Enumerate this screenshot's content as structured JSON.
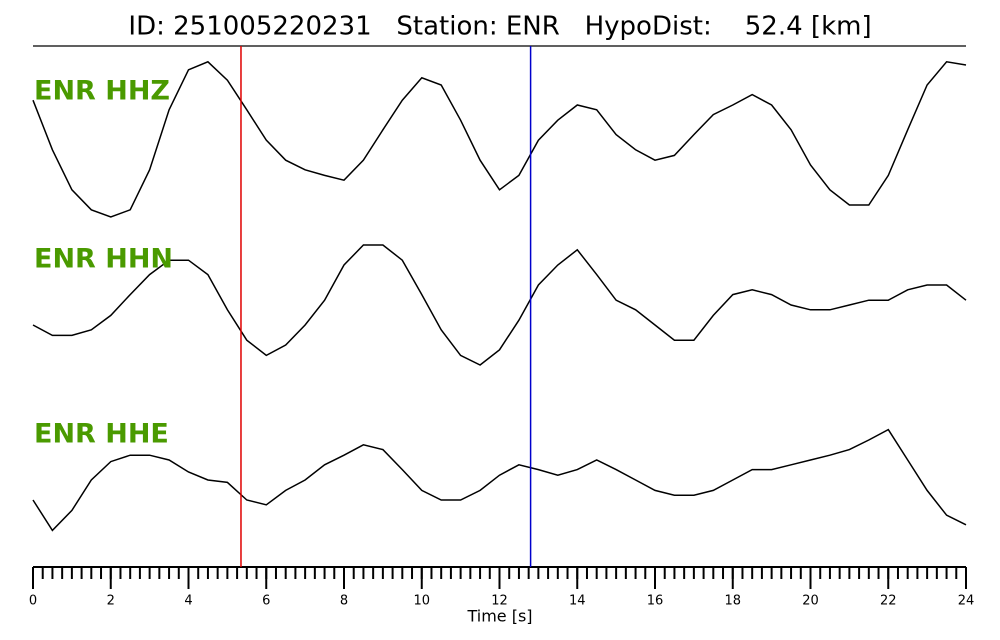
{
  "chart_data": {
    "type": "seismogram",
    "title": "ID: 251005220231   Station: ENR   HypoDist:    52.4 [km]",
    "xlabel": "Time [s]",
    "xlim": [
      0,
      24
    ],
    "xticks": [
      0,
      2,
      4,
      6,
      8,
      10,
      12,
      14,
      16,
      18,
      20,
      22,
      24
    ],
    "xminorticks": [
      0,
      0.25,
      0.5,
      0.75,
      1,
      1.25,
      1.5,
      1.75,
      2,
      2.25,
      2.5,
      2.75,
      3,
      3.25,
      3.5,
      3.75,
      4,
      4.25,
      4.5,
      4.75,
      5,
      5.25,
      5.5,
      5.75,
      6,
      6.25,
      6.5,
      6.75,
      7,
      7.25,
      7.5,
      7.75,
      8,
      8.25,
      8.5,
      8.75,
      9,
      9.25,
      9.5,
      9.75,
      10,
      10.25,
      10.5,
      10.75,
      11,
      11.25,
      11.5,
      11.75,
      12,
      12.25,
      12.5,
      12.75,
      13,
      13.25,
      13.5,
      13.75,
      14,
      14.25,
      14.5,
      14.75,
      15,
      15.25,
      15.5,
      15.75,
      16,
      16.25,
      16.5,
      16.75,
      17,
      17.25,
      17.5,
      17.75,
      18,
      18.25,
      18.5,
      18.75,
      19,
      19.25,
      19.5,
      19.75,
      20,
      20.25,
      20.5,
      20.75,
      21,
      21.25,
      21.5,
      21.75,
      22,
      22.25,
      22.5,
      22.75,
      23,
      23.25,
      23.5,
      23.75,
      24
    ],
    "ylim": [
      -1,
      1
    ],
    "x": [
      0,
      0.5,
      1,
      1.5,
      2,
      2.5,
      3,
      3.5,
      4,
      4.5,
      5,
      5.5,
      6,
      6.5,
      7,
      7.5,
      8,
      8.5,
      9,
      9.5,
      10,
      10.5,
      11,
      11.5,
      12,
      12.5,
      13,
      13.5,
      14,
      14.5,
      15,
      15.5,
      16,
      16.5,
      17,
      17.5,
      18,
      18.5,
      19,
      19.5,
      20,
      20.5,
      21,
      21.5,
      22,
      22.5,
      23,
      23.5,
      24
    ],
    "series": [
      {
        "name": "ENR HHZ",
        "color": "#000000",
        "label_color": "#4a9a00",
        "values": [
          0.46,
          -0.16,
          -0.66,
          -0.91,
          -1.0,
          -0.91,
          -0.41,
          0.34,
          0.84,
          0.94,
          0.71,
          0.34,
          -0.04,
          -0.29,
          -0.41,
          -0.48,
          -0.54,
          -0.29,
          0.09,
          0.46,
          0.74,
          0.65,
          0.21,
          -0.29,
          -0.66,
          -0.48,
          -0.04,
          0.21,
          0.4,
          0.34,
          0.03,
          -0.16,
          -0.29,
          -0.23,
          0.03,
          0.28,
          0.4,
          0.53,
          0.4,
          0.09,
          -0.35,
          -0.66,
          -0.85,
          -0.85,
          -0.48,
          0.09,
          0.65,
          0.94,
          0.9
        ]
      },
      {
        "name": "ENR HHN",
        "color": "#000000",
        "label_color": "#4a9a00",
        "values": [
          -0.25,
          -0.38,
          -0.38,
          -0.31,
          -0.13,
          0.13,
          0.38,
          0.56,
          0.56,
          0.38,
          -0.06,
          -0.44,
          -0.63,
          -0.5,
          -0.25,
          0.06,
          0.5,
          0.75,
          0.75,
          0.56,
          0.13,
          -0.31,
          -0.63,
          -0.75,
          -0.56,
          -0.19,
          0.25,
          0.5,
          0.69,
          0.38,
          0.06,
          -0.06,
          -0.25,
          -0.44,
          -0.44,
          -0.13,
          0.13,
          0.19,
          0.13,
          0,
          -0.06,
          -0.06,
          0,
          0.06,
          0.06,
          0.19,
          0.25,
          0.25,
          0.06
        ]
      },
      {
        "name": "ENR HHE",
        "color": "#000000",
        "label_color": "#4a9a00",
        "values": [
          -0.25,
          -0.63,
          -0.38,
          0,
          0.23,
          0.31,
          0.31,
          0.25,
          0.1,
          0,
          -0.03,
          -0.25,
          -0.31,
          -0.13,
          0,
          0.19,
          0.31,
          0.44,
          0.38,
          0.13,
          -0.13,
          -0.25,
          -0.25,
          -0.13,
          0.06,
          0.19,
          0.13,
          0.06,
          0.13,
          0.25,
          0.13,
          0,
          -0.13,
          -0.19,
          -0.19,
          -0.13,
          0,
          0.13,
          0.13,
          0.19,
          0.25,
          0.31,
          0.38,
          0.5,
          0.63,
          0.25,
          -0.13,
          -0.44,
          -0.56
        ]
      }
    ],
    "picks": [
      {
        "x": 5.35,
        "color": "#e00000"
      },
      {
        "x": 12.8,
        "color": "#0000cc"
      }
    ]
  }
}
